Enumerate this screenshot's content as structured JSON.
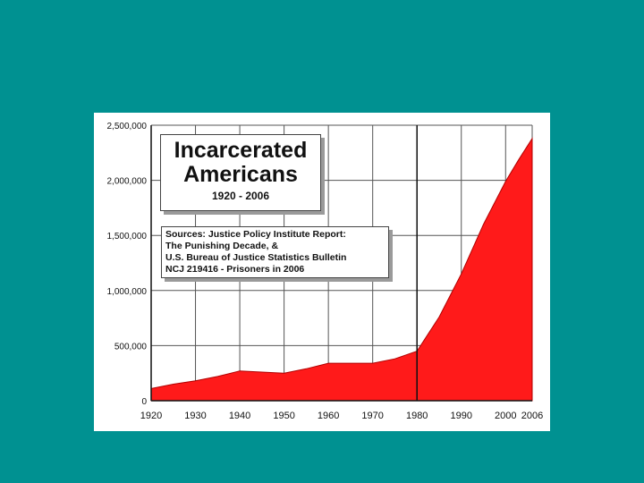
{
  "chart_data": {
    "type": "area",
    "title_lines": [
      "Incarcerated",
      "Americans"
    ],
    "subtitle": "1920 - 2006",
    "source_lines": [
      "Sources: Justice Policy Institute Report:",
      "The Punishing Decade, &",
      "U.S. Bureau of Justice Statistics Bulletin",
      "NCJ 219416 - Prisoners in 2006"
    ],
    "x_ticks": [
      "1920",
      "1930",
      "1940",
      "1950",
      "1960",
      "1970",
      "1980",
      "1990",
      "2000",
      "2006"
    ],
    "y_ticks": [
      "0",
      "500,000",
      "1,000,000",
      "1,500,000",
      "2,000,000",
      "2,500,000"
    ],
    "ylim": [
      0,
      2500000
    ],
    "xlim": [
      1920,
      2006
    ],
    "fill_color": "#ff1a1a",
    "highlight_line_x": 1980,
    "x": [
      1920,
      1925,
      1930,
      1935,
      1940,
      1945,
      1950,
      1955,
      1960,
      1965,
      1970,
      1975,
      1980,
      1985,
      1990,
      1995,
      2000,
      2003,
      2006
    ],
    "values": [
      110000,
      150000,
      180000,
      220000,
      270000,
      260000,
      250000,
      290000,
      340000,
      340000,
      340000,
      380000,
      450000,
      760000,
      1150000,
      1600000,
      1990000,
      2190000,
      2380000
    ]
  }
}
